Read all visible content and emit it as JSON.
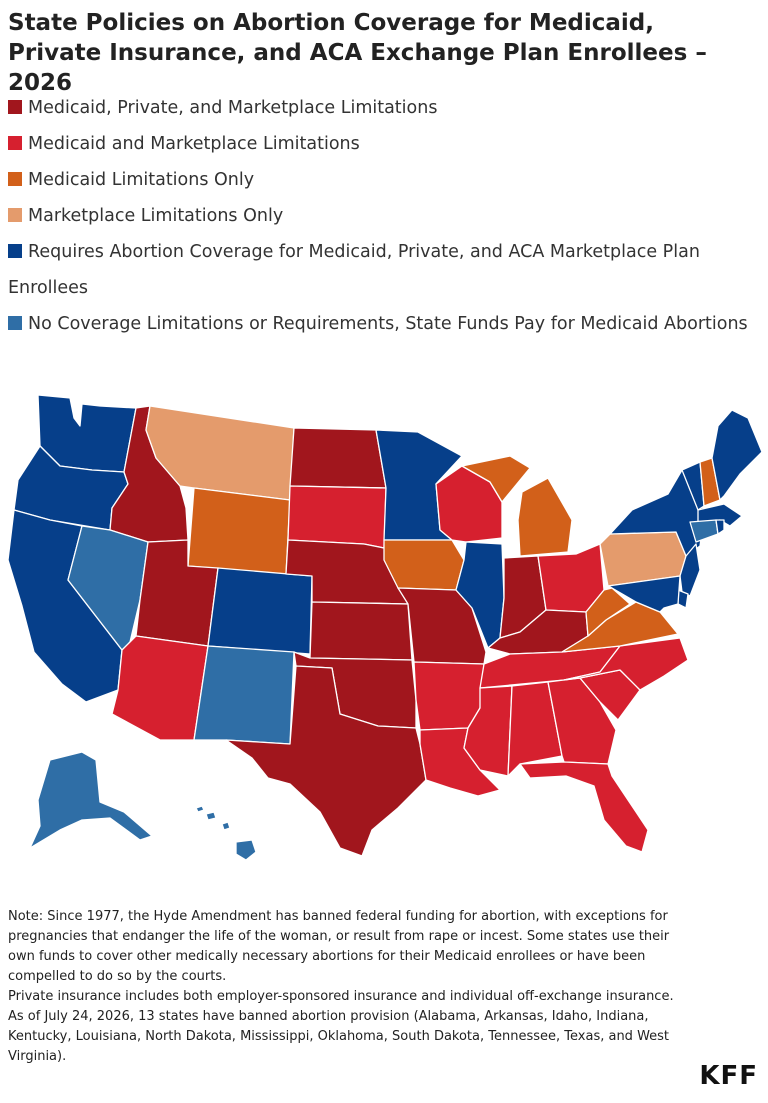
{
  "title": "State Policies on Abortion Coverage for Medicaid, Private Insurance, and ACA Exchange Plan Enrollees – 2026",
  "legend": [
    {
      "label": "Medicaid, Private, and Marketplace Limitations",
      "color": "#a1161d"
    },
    {
      "label": "Medicaid and Marketplace Limitations",
      "color": "#d6202f"
    },
    {
      "label": "Medicaid Limitations Only",
      "color": "#d2601a"
    },
    {
      "label": "Marketplace Limitations Only",
      "color": "#e49b6c"
    },
    {
      "label": "Requires Abortion Coverage for Medicaid, Private, and ACA Marketplace Plan Enrollees",
      "color": "#063f8a"
    },
    {
      "label": "No Coverage Limitations or Requirements, State Funds Pay for Medicaid Abortions",
      "color": "#2f6ea6"
    }
  ],
  "states": [
    {
      "name": "Washington",
      "category": 4
    },
    {
      "name": "Oregon",
      "category": 4
    },
    {
      "name": "California",
      "category": 4
    },
    {
      "name": "Idaho",
      "category": 0
    },
    {
      "name": "Nevada",
      "category": 5
    },
    {
      "name": "Montana",
      "category": 3
    },
    {
      "name": "Wyoming",
      "category": 2
    },
    {
      "name": "Utah",
      "category": 0
    },
    {
      "name": "Arizona",
      "category": 1
    },
    {
      "name": "Colorado",
      "category": 4
    },
    {
      "name": "New Mexico",
      "category": 5
    },
    {
      "name": "North Dakota",
      "category": 0
    },
    {
      "name": "South Dakota",
      "category": 1
    },
    {
      "name": "Nebraska",
      "category": 0
    },
    {
      "name": "Kansas",
      "category": 0
    },
    {
      "name": "Oklahoma",
      "category": 0
    },
    {
      "name": "Texas",
      "category": 0
    },
    {
      "name": "Minnesota",
      "category": 4
    },
    {
      "name": "Iowa",
      "category": 2
    },
    {
      "name": "Missouri",
      "category": 0
    },
    {
      "name": "Arkansas",
      "category": 1
    },
    {
      "name": "Louisiana",
      "category": 1
    },
    {
      "name": "Wisconsin",
      "category": 1
    },
    {
      "name": "Illinois",
      "category": 4
    },
    {
      "name": "Michigan",
      "category": 2
    },
    {
      "name": "Indiana",
      "category": 0
    },
    {
      "name": "Ohio",
      "category": 1
    },
    {
      "name": "Kentucky",
      "category": 0
    },
    {
      "name": "Tennessee",
      "category": 1
    },
    {
      "name": "Mississippi",
      "category": 1
    },
    {
      "name": "Alabama",
      "category": 1
    },
    {
      "name": "Georgia",
      "category": 1
    },
    {
      "name": "Florida",
      "category": 1
    },
    {
      "name": "South Carolina",
      "category": 1
    },
    {
      "name": "North Carolina",
      "category": 1
    },
    {
      "name": "Virginia",
      "category": 2
    },
    {
      "name": "West Virginia",
      "category": 2
    },
    {
      "name": "Pennsylvania",
      "category": 3
    },
    {
      "name": "New York",
      "category": 4
    },
    {
      "name": "Vermont",
      "category": 4
    },
    {
      "name": "New Hampshire",
      "category": 2
    },
    {
      "name": "Maine",
      "category": 4
    },
    {
      "name": "Massachusetts",
      "category": 4
    },
    {
      "name": "Connecticut",
      "category": 5
    },
    {
      "name": "Rhode Island",
      "category": 4
    },
    {
      "name": "New Jersey",
      "category": 4
    },
    {
      "name": "Delaware",
      "category": 4
    },
    {
      "name": "Maryland",
      "category": 4
    },
    {
      "name": "Alaska",
      "category": 5
    },
    {
      "name": "Hawaii",
      "category": 5
    }
  ],
  "notes": [
    "Note: Since 1977, the Hyde Amendment has banned federal funding for abortion, with exceptions for pregnancies that endanger the life of the woman, or result from rape or incest. Some states use their own funds to cover other medically necessary abortions for their Medicaid enrollees or have been compelled to do so by the courts.",
    "Private insurance includes both employer-sponsored insurance and individual off-exchange insurance.",
    "As of July 24, 2026, 13 states have banned abortion provision (Alabama, Arkansas, Idaho, Indiana, Kentucky, Louisiana, North Dakota, Mississippi, Oklahoma, South Dakota, Tennessee, Texas, and West Virginia)."
  ],
  "logo": "KFF"
}
